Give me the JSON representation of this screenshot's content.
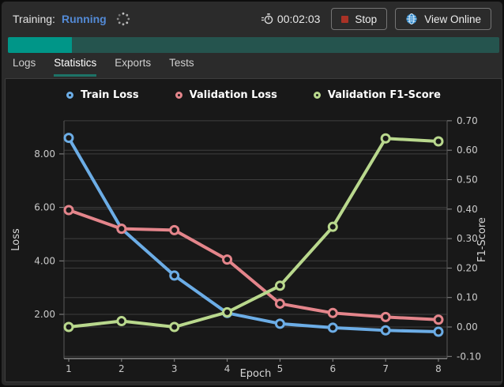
{
  "header": {
    "training_label": "Training:",
    "training_status": "Running",
    "timer": "00:02:03",
    "stop_label": "Stop",
    "view_online_label": "View Online"
  },
  "progress": {
    "percent": 13
  },
  "tabs": [
    {
      "label": "Logs"
    },
    {
      "label": "Statistics"
    },
    {
      "label": "Exports"
    },
    {
      "label": "Tests"
    }
  ],
  "colors": {
    "accent_teal": "#009688",
    "progress_track": "#25544e",
    "tab_underline": "#1d7367",
    "running_blue": "#538ad6",
    "stop_red": "#a93226",
    "panel_bg": "#181818",
    "gridline": "#3e3e3e",
    "train_loss": "#6cade6",
    "validation_loss": "#e4858b",
    "validation_f1": "#b9d88d"
  },
  "icons": {
    "spinner": "loading-spinner",
    "timer": "stopwatch-icon",
    "stop": "stop-square-icon",
    "view_online": "globe-icon"
  },
  "chart_data": {
    "type": "line",
    "x": [
      1,
      2,
      3,
      4,
      5,
      6,
      7,
      8
    ],
    "xlabel": "Epoch",
    "x_tick_labels": [
      "1",
      "2",
      "3",
      "4",
      "5",
      "6",
      "7",
      "8"
    ],
    "left_axis": {
      "label": "Loss",
      "ticks": [
        2,
        4,
        6,
        8
      ],
      "range_hint": [
        0.35,
        9.25
      ]
    },
    "right_axis": {
      "label": "F1-Score",
      "ticks": [
        -0.1,
        0.0,
        0.1,
        0.2,
        0.3,
        0.4,
        0.5,
        0.6,
        0.7
      ],
      "range_hint": [
        -0.1,
        0.7
      ]
    },
    "grid": true,
    "legend_position": "top-center",
    "series": [
      {
        "name": "Train Loss",
        "axis": "left",
        "color": "#6cade6",
        "values": [
          8.6,
          5.2,
          3.45,
          2.05,
          1.65,
          1.5,
          1.4,
          1.35
        ]
      },
      {
        "name": "Validation Loss",
        "axis": "left",
        "color": "#e4858b",
        "values": [
          5.9,
          5.2,
          5.15,
          4.05,
          2.4,
          2.05,
          1.9,
          1.8
        ]
      },
      {
        "name": "Validation F1-Score",
        "axis": "right",
        "color": "#b9d88d",
        "values": [
          0.0,
          0.02,
          0.0,
          0.05,
          0.14,
          0.34,
          0.64,
          0.63
        ]
      }
    ]
  }
}
